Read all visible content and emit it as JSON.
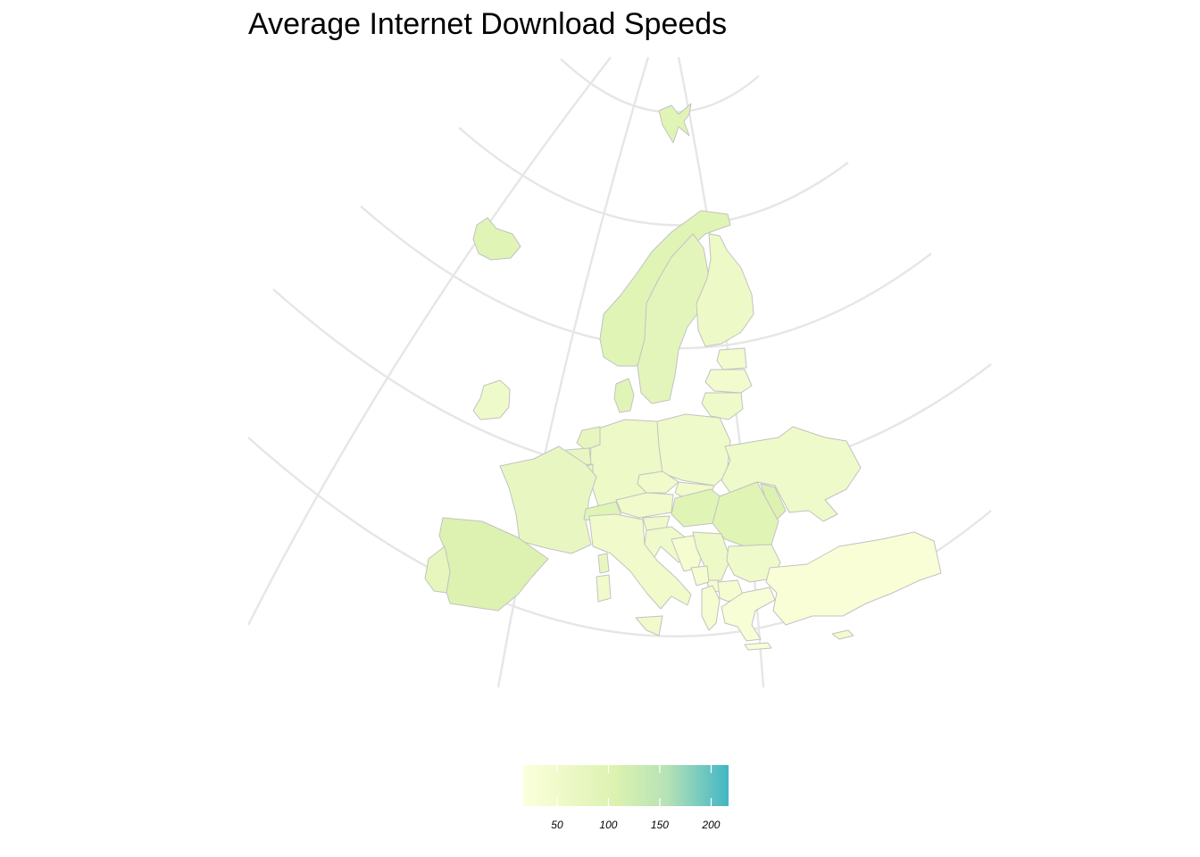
{
  "title": "Average Internet Download Speeds",
  "map": {
    "type": "choropleth",
    "region": "Europe",
    "colors": {
      "low": "#fcffdb",
      "mid": "#dcf2b0",
      "high": "#41b6c4",
      "border": "#c2c2c2",
      "graticule": "#e6e6e6"
    },
    "legend": {
      "placement": "bottom-center",
      "min": 17,
      "max": 217,
      "ticks": [
        50,
        100,
        150,
        200
      ],
      "tick_labels": [
        "50",
        "100",
        "150",
        "200"
      ]
    },
    "regions": [
      {
        "name": "Iceland",
        "value": 95
      },
      {
        "name": "Norway",
        "value": 95
      },
      {
        "name": "Sweden",
        "value": 85
      },
      {
        "name": "Finland",
        "value": 60
      },
      {
        "name": "Denmark",
        "value": 92
      },
      {
        "name": "Ireland",
        "value": 55
      },
      {
        "name": "Estonia",
        "value": 45
      },
      {
        "name": "Latvia",
        "value": 45
      },
      {
        "name": "Lithuania",
        "value": 55
      },
      {
        "name": "Poland",
        "value": 55
      },
      {
        "name": "Germany",
        "value": 60
      },
      {
        "name": "Netherlands",
        "value": 78
      },
      {
        "name": "Belgium",
        "value": 72
      },
      {
        "name": "France",
        "value": 72
      },
      {
        "name": "Switzerland",
        "value": 95
      },
      {
        "name": "Austria",
        "value": 52
      },
      {
        "name": "Czechia",
        "value": 52
      },
      {
        "name": "Slovakia",
        "value": 52
      },
      {
        "name": "Hungary",
        "value": 95
      },
      {
        "name": "Romania",
        "value": 95
      },
      {
        "name": "Moldova",
        "value": 105
      },
      {
        "name": "Ukraine",
        "value": 55
      },
      {
        "name": "Spain",
        "value": 105
      },
      {
        "name": "Portugal",
        "value": 80
      },
      {
        "name": "Italy",
        "value": 52
      },
      {
        "name": "Slovenia",
        "value": 55
      },
      {
        "name": "Croatia",
        "value": 55
      },
      {
        "name": "Bosnia and Herzegovina",
        "value": 40
      },
      {
        "name": "Serbia",
        "value": 60
      },
      {
        "name": "Montenegro",
        "value": 40
      },
      {
        "name": "Albania",
        "value": 40
      },
      {
        "name": "North Macedonia",
        "value": 40
      },
      {
        "name": "Bulgaria",
        "value": 55
      },
      {
        "name": "Greece",
        "value": 30
      },
      {
        "name": "Turkey",
        "value": 25
      },
      {
        "name": "Cyprus",
        "value": 45
      },
      {
        "name": "Svalbard",
        "value": 95
      },
      {
        "name": "Luxembourg",
        "value": 72
      },
      {
        "name": "Kosovo",
        "value": 40
      }
    ]
  }
}
